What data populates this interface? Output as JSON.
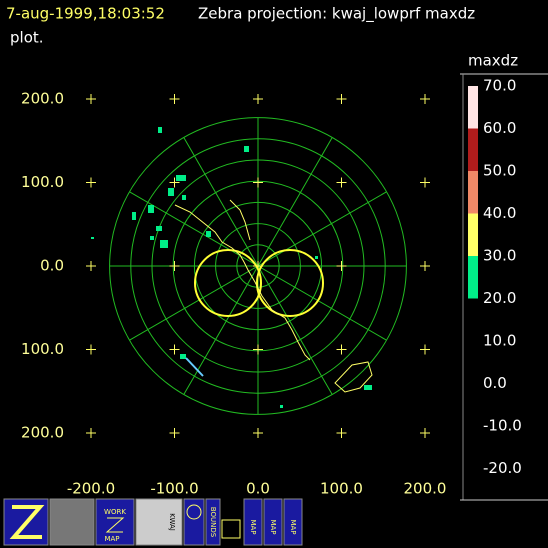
{
  "header": {
    "time": "7-aug-1999,18:03:52",
    "title": "Zebra projection: kwaj_lowprf maxdz",
    "title_cont": "plot."
  },
  "plot": {
    "x_labels": [
      "-200.0",
      "-100.0",
      "0.0",
      "100.0",
      "200.0"
    ],
    "y_labels": [
      "200.0",
      "100.0",
      "0.0",
      "100.0",
      "200.0"
    ]
  },
  "colorbar": {
    "title": "maxdz",
    "labels": [
      "70.0",
      "60.0",
      "50.0",
      "40.0",
      "30.0",
      "20.0",
      "10.0",
      "0.0",
      "-10.0",
      "-20.0"
    ],
    "colors": [
      "#ffe4e4",
      "#b01c1c",
      "#f08866",
      "#ffff66",
      "#00ee88"
    ]
  },
  "icons": {
    "work": "WORK",
    "map": "MAP",
    "bounds": "BOUNDS",
    "kwaj": "KWAJ"
  }
}
